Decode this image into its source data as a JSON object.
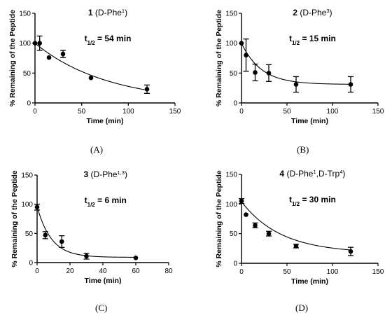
{
  "chart_data": [
    {
      "type": "scatter",
      "panel_label": "(A)",
      "title_number": "1",
      "title_text": "(D-Phe",
      "title_sup": "1",
      "title_close": ")",
      "half_life_prefix": "t",
      "half_life_sub": "1/2",
      "half_life_value": " = 54 min",
      "xlabel": "Time (min)",
      "ylabel": "% Remaining of the Peptide",
      "xlim": [
        0,
        150
      ],
      "ylim": [
        0,
        150
      ],
      "xticks": [
        0,
        50,
        100,
        150
      ],
      "yticks": [
        0,
        50,
        100,
        150
      ],
      "fit": {
        "model": "one-phase decay",
        "y0": 100,
        "plateau": 0,
        "half_life": 54,
        "x_end": 120
      },
      "points": [
        {
          "x": 0,
          "y": 100,
          "err": 0
        },
        {
          "x": 5,
          "y": 100,
          "err": 12
        },
        {
          "x": 15,
          "y": 76,
          "err": 0
        },
        {
          "x": 30,
          "y": 82,
          "err": 6
        },
        {
          "x": 60,
          "y": 42,
          "err": 0
        },
        {
          "x": 120,
          "y": 23,
          "err": 7
        }
      ]
    },
    {
      "type": "scatter",
      "panel_label": "(B)",
      "title_number": "2",
      "title_text": "(D-Phe",
      "title_sup": "3",
      "title_close": ")",
      "half_life_prefix": "t",
      "half_life_sub": "1/2",
      "half_life_value": " = 15 min",
      "xlabel": "Time (min)",
      "ylabel": "% Remaining of the Peptide",
      "xlim": [
        0,
        150
      ],
      "ylim": [
        0,
        150
      ],
      "xticks": [
        0,
        50,
        100,
        150
      ],
      "yticks": [
        0,
        50,
        100,
        150
      ],
      "fit": {
        "model": "one-phase decay",
        "y0": 100,
        "plateau": 31,
        "half_life": 15,
        "x_end": 120
      },
      "points": [
        {
          "x": 0,
          "y": 100,
          "err": 0
        },
        {
          "x": 5,
          "y": 80,
          "err": 27
        },
        {
          "x": 15,
          "y": 51,
          "err": 14
        },
        {
          "x": 30,
          "y": 50,
          "err": 14
        },
        {
          "x": 60,
          "y": 31,
          "err": 13
        },
        {
          "x": 120,
          "y": 31,
          "err": 13
        }
      ]
    },
    {
      "type": "scatter",
      "panel_label": "(C)",
      "title_number": "3",
      "title_text": "(D-Phe",
      "title_sup": "1,3",
      "title_close": ")",
      "half_life_prefix": "t",
      "half_life_sub": "1/2",
      "half_life_value": " = 6 min",
      "xlabel": "Time (min)",
      "ylabel": "% Remaining of the Peptide",
      "xlim": [
        0,
        80
      ],
      "ylim": [
        0,
        150
      ],
      "xticks": [
        0,
        20,
        40,
        60,
        80
      ],
      "yticks": [
        0,
        50,
        100,
        150
      ],
      "fit": {
        "model": "one-phase decay",
        "y0": 96,
        "plateau": 9,
        "half_life": 6,
        "x_end": 60
      },
      "points": [
        {
          "x": 0,
          "y": 95,
          "err": 5
        },
        {
          "x": 5,
          "y": 47,
          "err": 6
        },
        {
          "x": 15,
          "y": 36,
          "err": 10
        },
        {
          "x": 30,
          "y": 11,
          "err": 5
        },
        {
          "x": 60,
          "y": 8,
          "err": 0
        }
      ]
    },
    {
      "type": "scatter",
      "panel_label": "(D)",
      "title_number": "4",
      "title_text": "(D-Phe",
      "title_sup": "1",
      "title_mid": ",D-Trp",
      "title_sup2": "4",
      "title_close": ")",
      "half_life_prefix": "t",
      "half_life_sub": "1/2",
      "half_life_value": " = 30 min",
      "xlabel": "Time (min)",
      "ylabel": "% Remaining of the Peptide",
      "xlim": [
        0,
        150
      ],
      "ylim": [
        0,
        150
      ],
      "xticks": [
        0,
        50,
        100,
        150
      ],
      "yticks": [
        0,
        50,
        100,
        150
      ],
      "fit": {
        "model": "one-phase decay",
        "y0": 104,
        "plateau": 17,
        "half_life": 30,
        "x_end": 120
      },
      "points": [
        {
          "x": 0,
          "y": 105,
          "err": 4
        },
        {
          "x": 5,
          "y": 82,
          "err": 0
        },
        {
          "x": 15,
          "y": 64,
          "err": 4
        },
        {
          "x": 30,
          "y": 50,
          "err": 4
        },
        {
          "x": 60,
          "y": 29,
          "err": 3
        },
        {
          "x": 120,
          "y": 20,
          "err": 7
        }
      ]
    }
  ]
}
